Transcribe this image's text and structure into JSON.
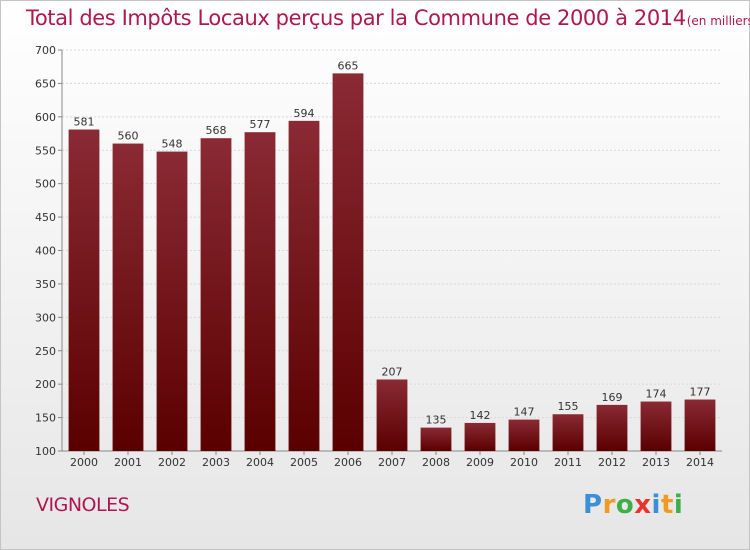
{
  "title": {
    "main": "Total des Impôts Locaux perçus par la Commune de 2000 à 2014",
    "unit": "(en milliers d'€)"
  },
  "commune": "VIGNOLES",
  "logo": {
    "letters": [
      "P",
      "r",
      "o",
      "x",
      "i",
      "t",
      "i"
    ],
    "colors": [
      "#3a8fd8",
      "#f29a1f",
      "#3fae49",
      "#e8332b",
      "#3a8fd8",
      "#f29a1f",
      "#3fae49"
    ]
  },
  "colors": {
    "bar_top": "#8a2a34",
    "bar_bottom": "#5a0000",
    "grid": "#d8d8d8",
    "axis": "#888888"
  },
  "chart_data": {
    "type": "bar",
    "title": "Total des Impôts Locaux perçus par la Commune de 2000 à 2014",
    "xlabel": "",
    "ylabel": "(en milliers d'€)",
    "categories": [
      "2000",
      "2001",
      "2002",
      "2003",
      "2004",
      "2005",
      "2006",
      "2007",
      "2008",
      "2009",
      "2010",
      "2011",
      "2012",
      "2013",
      "2014"
    ],
    "values": [
      581,
      560,
      548,
      568,
      577,
      594,
      665,
      207,
      135,
      142,
      147,
      155,
      169,
      174,
      177
    ],
    "ylim": [
      100,
      700
    ],
    "yticks": [
      100,
      150,
      200,
      250,
      300,
      350,
      400,
      450,
      500,
      550,
      600,
      650,
      700
    ],
    "grid": true,
    "legend": "none"
  }
}
